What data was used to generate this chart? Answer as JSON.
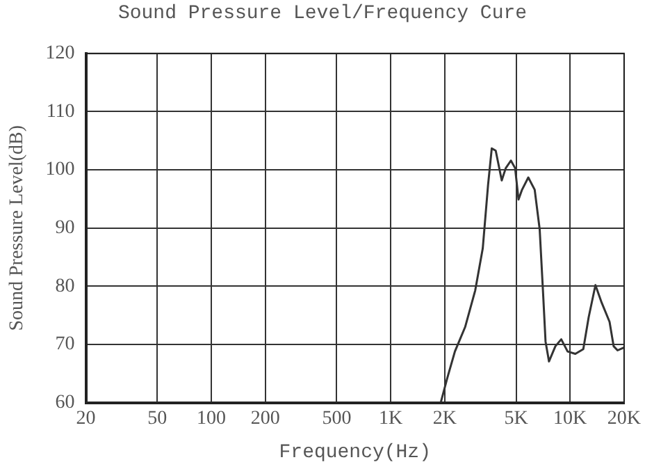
{
  "chart_data": {
    "type": "line",
    "title": "Sound Pressure Level/Frequency Cure",
    "xlabel": "Frequency(Hz)",
    "ylabel": "Sound Pressure Level(dB)",
    "log": "x",
    "grid": true,
    "legend": false,
    "marker": "none",
    "line_style": "solid",
    "xlim": [
      20,
      20000
    ],
    "xticks": [
      20,
      50,
      100,
      200,
      500,
      {
        "value": 1000,
        "label": "1K"
      },
      {
        "value": 2000,
        "label": "2K"
      },
      {
        "value": 5000,
        "label": "5K"
      },
      {
        "value": 10000,
        "label": "10K"
      },
      {
        "value": 20000,
        "label": "20K"
      }
    ],
    "ylim": [
      60,
      120
    ],
    "yticks": [
      60,
      70,
      80,
      90,
      100,
      110,
      120
    ],
    "series": [
      {
        "color": "#333333",
        "x": [
          20,
          1900,
          2066,
          2280,
          2600,
          2960,
          3260,
          3490,
          3660,
          3850,
          4160,
          4380,
          4680,
          4940,
          5160,
          5400,
          5850,
          6350,
          6770,
          7070,
          7300,
          7630,
          8280,
          8930,
          9690,
          10700,
          11850,
          12700,
          13850,
          15000,
          16600,
          17500,
          18400,
          20000
        ],
        "values": [
          60,
          60,
          64.2,
          68.8,
          73.0,
          79.3,
          86.5,
          97.4,
          103.7,
          103.3,
          98.2,
          100.3,
          101.6,
          100.3,
          94.9,
          96.6,
          98.7,
          96.6,
          89.8,
          78.9,
          70.5,
          67.1,
          69.7,
          70.9,
          68.8,
          68.4,
          69.2,
          74.7,
          80.2,
          77.2,
          73.9,
          69.7,
          69.0,
          69.5
        ]
      }
    ]
  }
}
